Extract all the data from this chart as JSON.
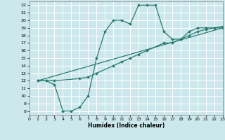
{
  "xlabel": "Humidex (Indice chaleur)",
  "bg_color": "#cce8ec",
  "grid_color": "#ffffff",
  "line_color": "#2a7a6e",
  "xmin": 0,
  "xmax": 23,
  "ymin": 7.5,
  "ymax": 22.5,
  "yticks": [
    8,
    9,
    10,
    11,
    12,
    13,
    14,
    15,
    16,
    17,
    18,
    19,
    20,
    21,
    22
  ],
  "xticks": [
    0,
    1,
    2,
    3,
    4,
    5,
    6,
    7,
    8,
    9,
    10,
    11,
    12,
    13,
    14,
    15,
    16,
    17,
    18,
    19,
    20,
    21,
    22,
    23
  ],
  "line1_x": [
    1,
    2,
    3,
    4,
    5,
    6,
    7,
    8,
    9,
    10,
    11,
    12,
    13,
    14,
    15,
    16,
    17,
    18,
    19,
    20,
    21,
    22,
    23
  ],
  "line1_y": [
    12,
    12,
    11.5,
    8,
    8,
    8.5,
    10,
    15,
    18.5,
    20,
    20,
    19.5,
    22,
    22,
    22,
    18.5,
    17.5,
    17.5,
    18.5,
    19,
    19,
    19,
    19
  ],
  "line2_x": [
    1,
    2,
    3,
    6,
    7,
    8,
    10,
    11,
    12,
    13,
    14,
    16,
    17,
    18,
    19,
    20,
    21,
    22,
    23
  ],
  "line2_y": [
    12,
    12,
    12,
    12.3,
    12.5,
    13,
    14,
    14.5,
    15,
    15.5,
    16,
    17,
    17,
    17.5,
    18,
    18.5,
    18.8,
    19,
    19.2
  ],
  "line3_x": [
    1,
    23
  ],
  "line3_y": [
    12,
    19
  ]
}
